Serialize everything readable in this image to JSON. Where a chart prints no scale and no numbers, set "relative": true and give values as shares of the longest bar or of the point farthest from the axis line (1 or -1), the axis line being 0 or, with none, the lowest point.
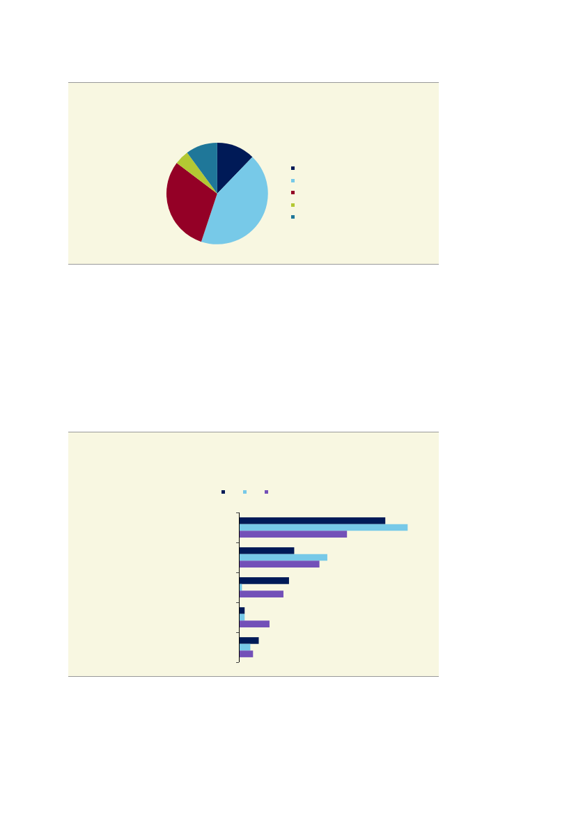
{
  "chart_data": [
    {
      "type": "pie",
      "categories": [
        null,
        null,
        null,
        null,
        null
      ],
      "values": [
        12.2,
        42.9,
        30.2,
        4.6,
        10.1
      ],
      "colors": [
        "#001a57",
        "#77c9e8",
        "#940026",
        "#b3c833",
        "#1f7799"
      ]
    },
    {
      "type": "bar",
      "orientation": "horizontal",
      "relative": true,
      "categories": [
        null,
        null,
        null,
        null,
        null
      ],
      "series": [
        {
          "color": "#001a57",
          "values": [
            0.867,
            0.325,
            0.294,
            0.03,
            0.114
          ]
        },
        {
          "color": "#77c9e8",
          "values": [
            1,
            0.522,
            0.014,
            0.03,
            0.064
          ]
        },
        {
          "color": "#7350b8",
          "values": [
            0.639,
            0.475,
            0.261,
            0.178,
            0.08
          ]
        }
      ]
    }
  ]
}
